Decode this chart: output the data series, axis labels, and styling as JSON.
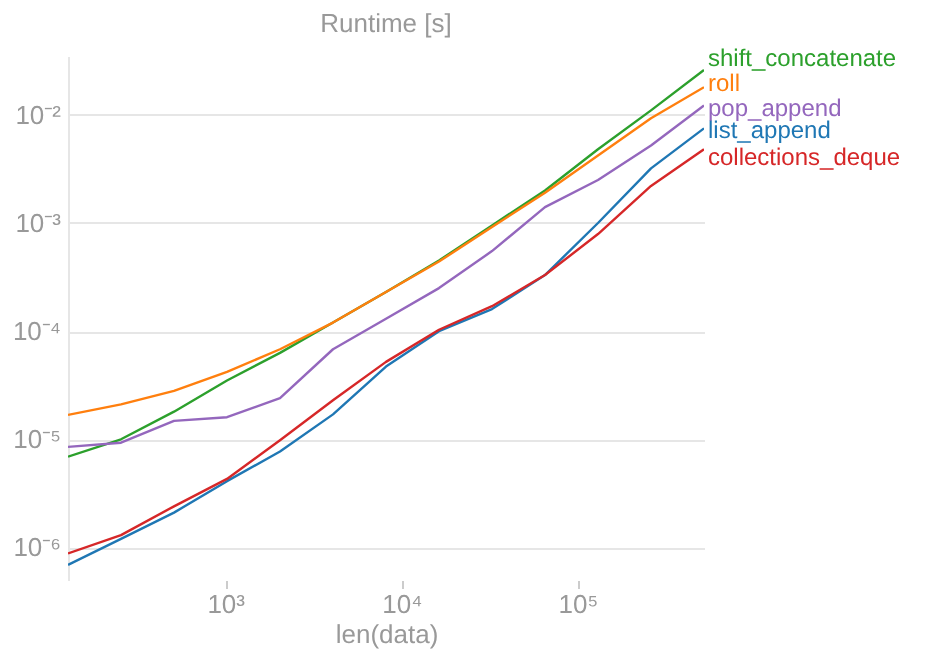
{
  "chart_data": {
    "type": "line",
    "title": "Runtime [s]",
    "xlabel": "len(data)",
    "x": [
      128,
      256,
      512,
      1024,
      2048,
      4096,
      8192,
      16384,
      32768,
      65536,
      131072,
      262144,
      524288
    ],
    "series": [
      {
        "name": "shift_concatenate",
        "color": "#2ca02c",
        "values": [
          6.9e-06,
          1e-05,
          1.8e-05,
          3.5e-05,
          6.3e-05,
          0.00012,
          0.00023,
          0.00045,
          0.00095,
          0.002,
          0.0048,
          0.011,
          0.026
        ]
      },
      {
        "name": "roll",
        "color": "#ff7f0e",
        "values": [
          1.68e-05,
          2.1e-05,
          2.8e-05,
          4.2e-05,
          6.8e-05,
          0.00012,
          0.00023,
          0.00044,
          0.00092,
          0.0019,
          0.0042,
          0.0093,
          0.018
        ]
      },
      {
        "name": "pop_append",
        "color": "#9467bd",
        "values": [
          8.5e-06,
          9.3e-06,
          1.48e-05,
          1.6e-05,
          2.4e-05,
          6.8e-05,
          0.00013,
          0.00025,
          0.00055,
          0.0014,
          0.0025,
          0.0052,
          0.0122
        ]
      },
      {
        "name": "list_append",
        "color": "#1f77b4",
        "values": [
          6.9e-07,
          1.2e-06,
          2.1e-06,
          4.1e-06,
          7.7e-06,
          1.7e-05,
          4.7e-05,
          0.0001,
          0.00016,
          0.00033,
          0.001,
          0.0032,
          0.0075
        ]
      },
      {
        "name": "collections_deque",
        "color": "#d62728",
        "values": [
          8.8e-07,
          1.3e-06,
          2.4e-06,
          4.3e-06,
          9.8e-06,
          2.3e-05,
          5.2e-05,
          0.000103,
          0.00017,
          0.00033,
          0.00079,
          0.0022,
          0.0048
        ]
      }
    ],
    "log": "xy",
    "xlim": [
      128,
      524288
    ],
    "ylim": [
      5e-07,
      0.035
    ],
    "xticks": [
      {
        "value": 1000,
        "label": "10³"
      },
      {
        "value": 10000,
        "label": "10⁴"
      },
      {
        "value": 100000,
        "label": "10⁵"
      }
    ],
    "yticks": [
      {
        "value": 1e-06,
        "label": "10⁻⁶"
      },
      {
        "value": 1e-05,
        "label": "10⁻⁵"
      },
      {
        "value": 0.0001,
        "label": "10⁻⁴"
      },
      {
        "value": 0.001,
        "label": "10⁻³"
      },
      {
        "value": 0.01,
        "label": "10⁻²"
      }
    ],
    "grid": "y",
    "legend": false,
    "marker": "none",
    "line_style": "solid"
  }
}
